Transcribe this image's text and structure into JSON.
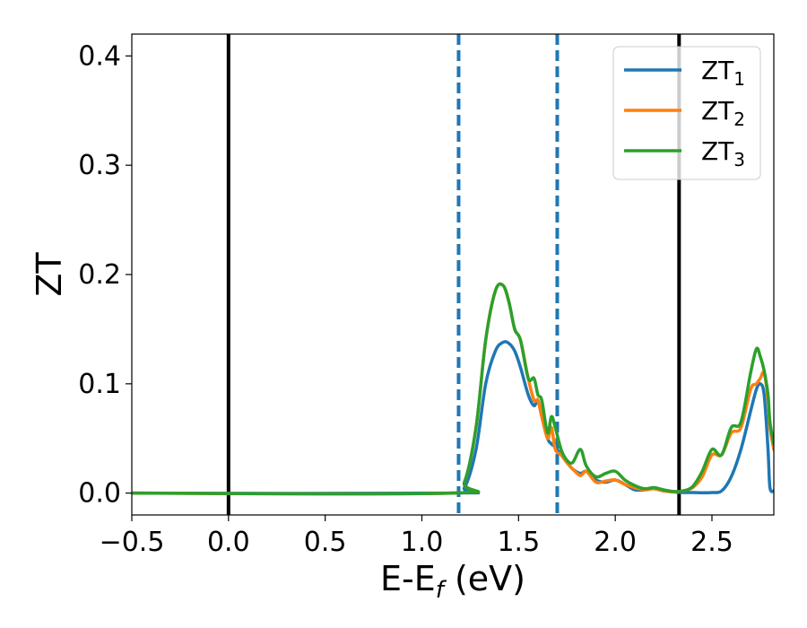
{
  "chart_data": {
    "type": "line",
    "xlabel_main": "E-E",
    "xlabel_sub": "f",
    "xlabel_unit": " (eV)",
    "ylabel": "ZT",
    "xlim": [
      -0.5,
      2.82
    ],
    "ylim": [
      -0.02,
      0.42
    ],
    "xticks": [
      -0.5,
      0.0,
      0.5,
      1.0,
      1.5,
      2.0,
      2.5
    ],
    "xtick_labels": [
      "−0.5",
      "0.0",
      "0.5",
      "1.0",
      "1.5",
      "2.0",
      "2.5"
    ],
    "yticks": [
      0.0,
      0.1,
      0.2,
      0.3,
      0.4
    ],
    "ytick_labels": [
      "0.0",
      "0.1",
      "0.2",
      "0.3",
      "0.4"
    ],
    "grid": false,
    "legend_position": "top-right",
    "vlines": [
      {
        "x": 0.0,
        "style": "solid",
        "color": "#000000"
      },
      {
        "x": 2.33,
        "style": "solid",
        "color": "#000000"
      },
      {
        "x": 1.19,
        "style": "dashed",
        "color": "#1f77b4"
      },
      {
        "x": 1.7,
        "style": "dashed",
        "color": "#1f77b4"
      }
    ],
    "series": [
      {
        "name": "ZT",
        "sub": "1",
        "color": "#1f77b4",
        "x": [
          -0.5,
          1.15,
          1.22,
          1.28,
          1.33,
          1.38,
          1.42,
          1.45,
          1.48,
          1.51,
          1.55,
          1.58,
          1.6,
          1.62,
          1.65,
          1.67,
          1.69,
          1.72,
          1.75,
          1.78,
          1.82,
          1.85,
          1.9,
          1.95,
          2.0,
          2.05,
          2.1,
          2.15,
          2.2,
          2.25,
          2.3,
          2.35,
          2.4,
          2.45,
          2.5,
          2.55,
          2.6,
          2.65,
          2.7,
          2.73,
          2.75,
          2.77,
          2.79,
          2.8,
          2.82
        ],
        "y": [
          0.0,
          0.0,
          0.005,
          0.04,
          0.1,
          0.13,
          0.138,
          0.137,
          0.13,
          0.115,
          0.09,
          0.08,
          0.085,
          0.07,
          0.05,
          0.045,
          0.042,
          0.035,
          0.028,
          0.022,
          0.018,
          0.02,
          0.012,
          0.01,
          0.012,
          0.008,
          0.003,
          0.003,
          0.004,
          0.002,
          0.001,
          0.0005,
          0.0005,
          0.0003,
          0.0005,
          0.002,
          0.015,
          0.04,
          0.075,
          0.095,
          0.1,
          0.09,
          0.04,
          0.005,
          0.002
        ]
      },
      {
        "name": "ZT",
        "sub": "2",
        "color": "#ff7f0e",
        "x": [
          -0.5,
          1.15,
          1.22,
          1.28,
          1.33,
          1.38,
          1.42,
          1.45,
          1.48,
          1.51,
          1.55,
          1.58,
          1.6,
          1.62,
          1.65,
          1.67,
          1.69,
          1.72,
          1.75,
          1.78,
          1.82,
          1.85,
          1.9,
          1.95,
          2.0,
          2.05,
          2.1,
          2.15,
          2.2,
          2.25,
          2.3,
          2.35,
          2.4,
          2.45,
          2.5,
          2.55,
          2.6,
          2.65,
          2.7,
          2.73,
          2.75,
          2.77,
          2.79,
          2.8,
          2.82
        ],
        "y": [
          0.0,
          0.0,
          0.01,
          0.06,
          0.14,
          0.185,
          0.19,
          0.175,
          0.15,
          0.14,
          0.105,
          0.085,
          0.085,
          0.07,
          0.05,
          0.06,
          0.04,
          0.035,
          0.028,
          0.022,
          0.016,
          0.02,
          0.01,
          0.011,
          0.012,
          0.008,
          0.005,
          0.003,
          0.004,
          0.002,
          0.001,
          0.002,
          0.005,
          0.015,
          0.035,
          0.035,
          0.055,
          0.06,
          0.095,
          0.1,
          0.105,
          0.11,
          0.085,
          0.06,
          0.04
        ]
      },
      {
        "name": "ZT",
        "sub": "3",
        "color": "#2ca02c",
        "x": [
          -0.5,
          1.15,
          1.22,
          1.28,
          1.33,
          1.38,
          1.42,
          1.45,
          1.48,
          1.51,
          1.55,
          1.58,
          1.6,
          1.62,
          1.65,
          1.67,
          1.69,
          1.72,
          1.75,
          1.78,
          1.82,
          1.85,
          1.9,
          1.95,
          2.0,
          2.05,
          2.1,
          2.15,
          2.2,
          2.25,
          2.3,
          2.35,
          2.4,
          2.45,
          2.5,
          2.55,
          2.6,
          2.65,
          2.7,
          2.73,
          2.75,
          2.77,
          2.79,
          2.8,
          2.82
        ],
        "y": [
          0.0,
          0.0,
          0.01,
          0.06,
          0.14,
          0.185,
          0.19,
          0.175,
          0.15,
          0.14,
          0.105,
          0.105,
          0.09,
          0.085,
          0.055,
          0.07,
          0.06,
          0.04,
          0.03,
          0.028,
          0.04,
          0.025,
          0.015,
          0.018,
          0.02,
          0.012,
          0.007,
          0.004,
          0.005,
          0.003,
          0.0015,
          0.002,
          0.006,
          0.02,
          0.04,
          0.035,
          0.06,
          0.065,
          0.11,
          0.132,
          0.125,
          0.112,
          0.09,
          0.065,
          0.045
        ]
      }
    ]
  }
}
